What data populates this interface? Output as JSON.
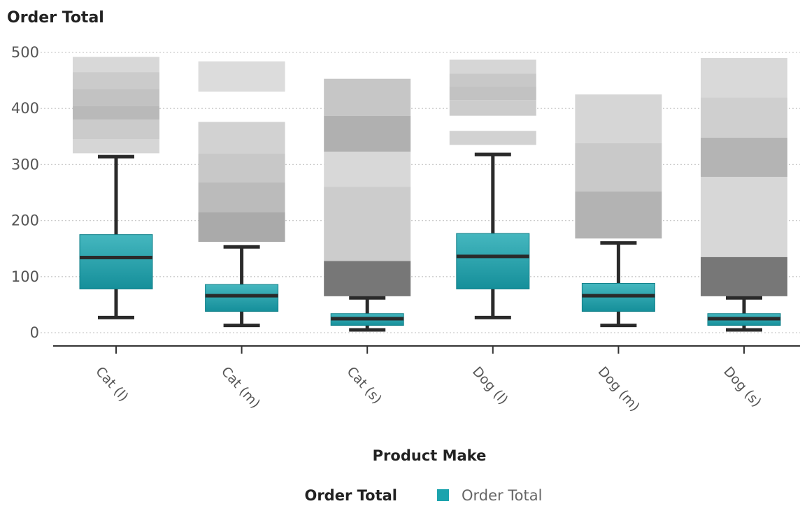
{
  "chart_data": {
    "type": "box",
    "title": "",
    "ylabel": "Order Total",
    "xlabel": "Product Make",
    "ylim": [
      0,
      500
    ],
    "yticks": [
      0,
      100,
      200,
      300,
      400,
      500
    ],
    "grid": true,
    "legend": {
      "title": "Order Total",
      "items": [
        {
          "label": "Order Total",
          "color": "#1ba3ad"
        }
      ],
      "position": "bottom"
    },
    "categories": [
      "Cat (l)",
      "Cat (m)",
      "Cat (s)",
      "Dog (l)",
      "Dog (m)",
      "Dog (s)"
    ],
    "boxes": [
      {
        "category": "Cat (l)",
        "min": 27,
        "q1": 78,
        "median": 134,
        "q3": 175,
        "max": 314
      },
      {
        "category": "Cat (m)",
        "min": 13,
        "q1": 38,
        "median": 66,
        "q3": 86,
        "max": 153
      },
      {
        "category": "Cat (s)",
        "min": 5,
        "q1": 13,
        "median": 25,
        "q3": 34,
        "max": 62
      },
      {
        "category": "Dog (l)",
        "min": 27,
        "q1": 78,
        "median": 136,
        "q3": 177,
        "max": 318
      },
      {
        "category": "Dog (m)",
        "min": 13,
        "q1": 38,
        "median": 66,
        "q3": 88,
        "max": 160
      },
      {
        "category": "Dog (s)",
        "min": 5,
        "q1": 13,
        "median": 25,
        "q3": 34,
        "max": 62
      }
    ],
    "outlier_bands": [
      {
        "category": "Cat (l)",
        "segments": [
          {
            "from": 320,
            "to": 345,
            "color": "#d6d6d6"
          },
          {
            "from": 345,
            "to": 380,
            "color": "#cbcbcb"
          },
          {
            "from": 380,
            "to": 405,
            "color": "#b9b9b9"
          },
          {
            "from": 405,
            "to": 435,
            "color": "#c2c2c2"
          },
          {
            "from": 435,
            "to": 465,
            "color": "#cbcbcb"
          },
          {
            "from": 465,
            "to": 492,
            "color": "#d8d8d8"
          }
        ]
      },
      {
        "category": "Cat (m)",
        "segments": [
          {
            "from": 162,
            "to": 215,
            "color": "#aaaaaa"
          },
          {
            "from": 215,
            "to": 268,
            "color": "#bbbbbb"
          },
          {
            "from": 268,
            "to": 320,
            "color": "#c8c8c8"
          },
          {
            "from": 320,
            "to": 376,
            "color": "#d2d2d2"
          },
          {
            "from": 430,
            "to": 484,
            "color": "#dcdcdc"
          }
        ]
      },
      {
        "category": "Cat (s)",
        "segments": [
          {
            "from": 65,
            "to": 128,
            "color": "#777777"
          },
          {
            "from": 128,
            "to": 260,
            "color": "#cccccc"
          },
          {
            "from": 260,
            "to": 323,
            "color": "#d8d8d8"
          },
          {
            "from": 323,
            "to": 387,
            "color": "#b0b0b0"
          },
          {
            "from": 387,
            "to": 453,
            "color": "#c6c6c6"
          }
        ]
      },
      {
        "category": "Dog (l)",
        "segments": [
          {
            "from": 335,
            "to": 360,
            "color": "#d2d2d2"
          },
          {
            "from": 387,
            "to": 415,
            "color": "#cccccc"
          },
          {
            "from": 415,
            "to": 440,
            "color": "#c2c2c2"
          },
          {
            "from": 440,
            "to": 462,
            "color": "#c8c8c8"
          },
          {
            "from": 462,
            "to": 487,
            "color": "#d6d6d6"
          }
        ]
      },
      {
        "category": "Dog (m)",
        "segments": [
          {
            "from": 168,
            "to": 252,
            "color": "#b3b3b3"
          },
          {
            "from": 252,
            "to": 338,
            "color": "#c9c9c9"
          },
          {
            "from": 338,
            "to": 425,
            "color": "#d6d6d6"
          }
        ]
      },
      {
        "category": "Dog (s)",
        "segments": [
          {
            "from": 65,
            "to": 135,
            "color": "#777777"
          },
          {
            "from": 135,
            "to": 278,
            "color": "#d7d7d7"
          },
          {
            "from": 278,
            "to": 348,
            "color": "#b4b4b4"
          },
          {
            "from": 348,
            "to": 420,
            "color": "#cfcfcf"
          },
          {
            "from": 420,
            "to": 490,
            "color": "#d9d9d9"
          }
        ]
      }
    ],
    "colors": {
      "box_top": "#45b7bf",
      "box_bottom": "#158f9a",
      "whisker": "#2a2a2a",
      "grid": "#cccccc",
      "axis": "#333333"
    }
  }
}
